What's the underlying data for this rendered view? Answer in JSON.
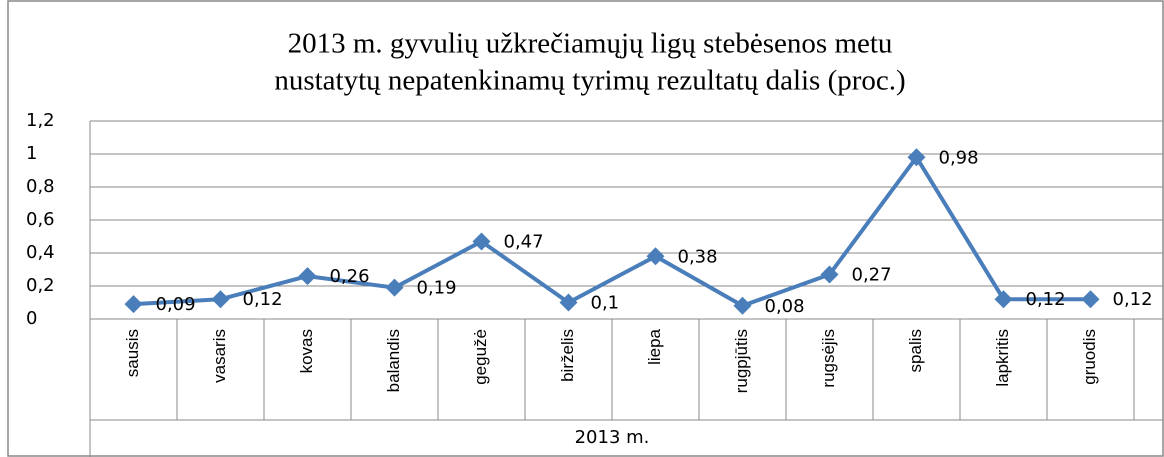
{
  "chart_data": {
    "type": "line",
    "title": [
      "2013 m. gyvulių užkrečiamųjų ligų stebėsenos  metu",
      "nustatytų  nepatenkinamų  tyrimų rezultatų dalis (proc.)"
    ],
    "x_label": "2013 m.",
    "categories": [
      "sausis",
      "vasaris",
      "kovas",
      "balandis",
      "gegužė",
      "birželis",
      "liepa",
      "rugpjūtis",
      "rugsėjis",
      "spalis",
      "lapkritis",
      "gruodis"
    ],
    "series": [
      {
        "name": "2013 m.",
        "color": "#4a7ebb",
        "values": [
          0.09,
          0.12,
          0.26,
          0.19,
          0.47,
          0.1,
          0.38,
          0.08,
          0.27,
          0.98,
          0.12,
          0.12
        ],
        "value_labels": [
          "0,09",
          "0,12",
          "0,26",
          "0,19",
          "0,47",
          "0,1",
          "0,38",
          "0,08",
          "0,27",
          "0,98",
          "0,12",
          "0,12"
        ]
      }
    ],
    "ylim": [
      0,
      1.2
    ],
    "yticks": [
      0,
      {
        "value": 0.2,
        "label": "0,2"
      },
      {
        "value": 0.4,
        "label": "0,4"
      },
      {
        "value": 0.6,
        "label": "0,6"
      },
      {
        "value": 0.8,
        "label": "0,8"
      },
      1,
      {
        "value": 1.2,
        "label": "1,2"
      }
    ],
    "grid": true
  }
}
